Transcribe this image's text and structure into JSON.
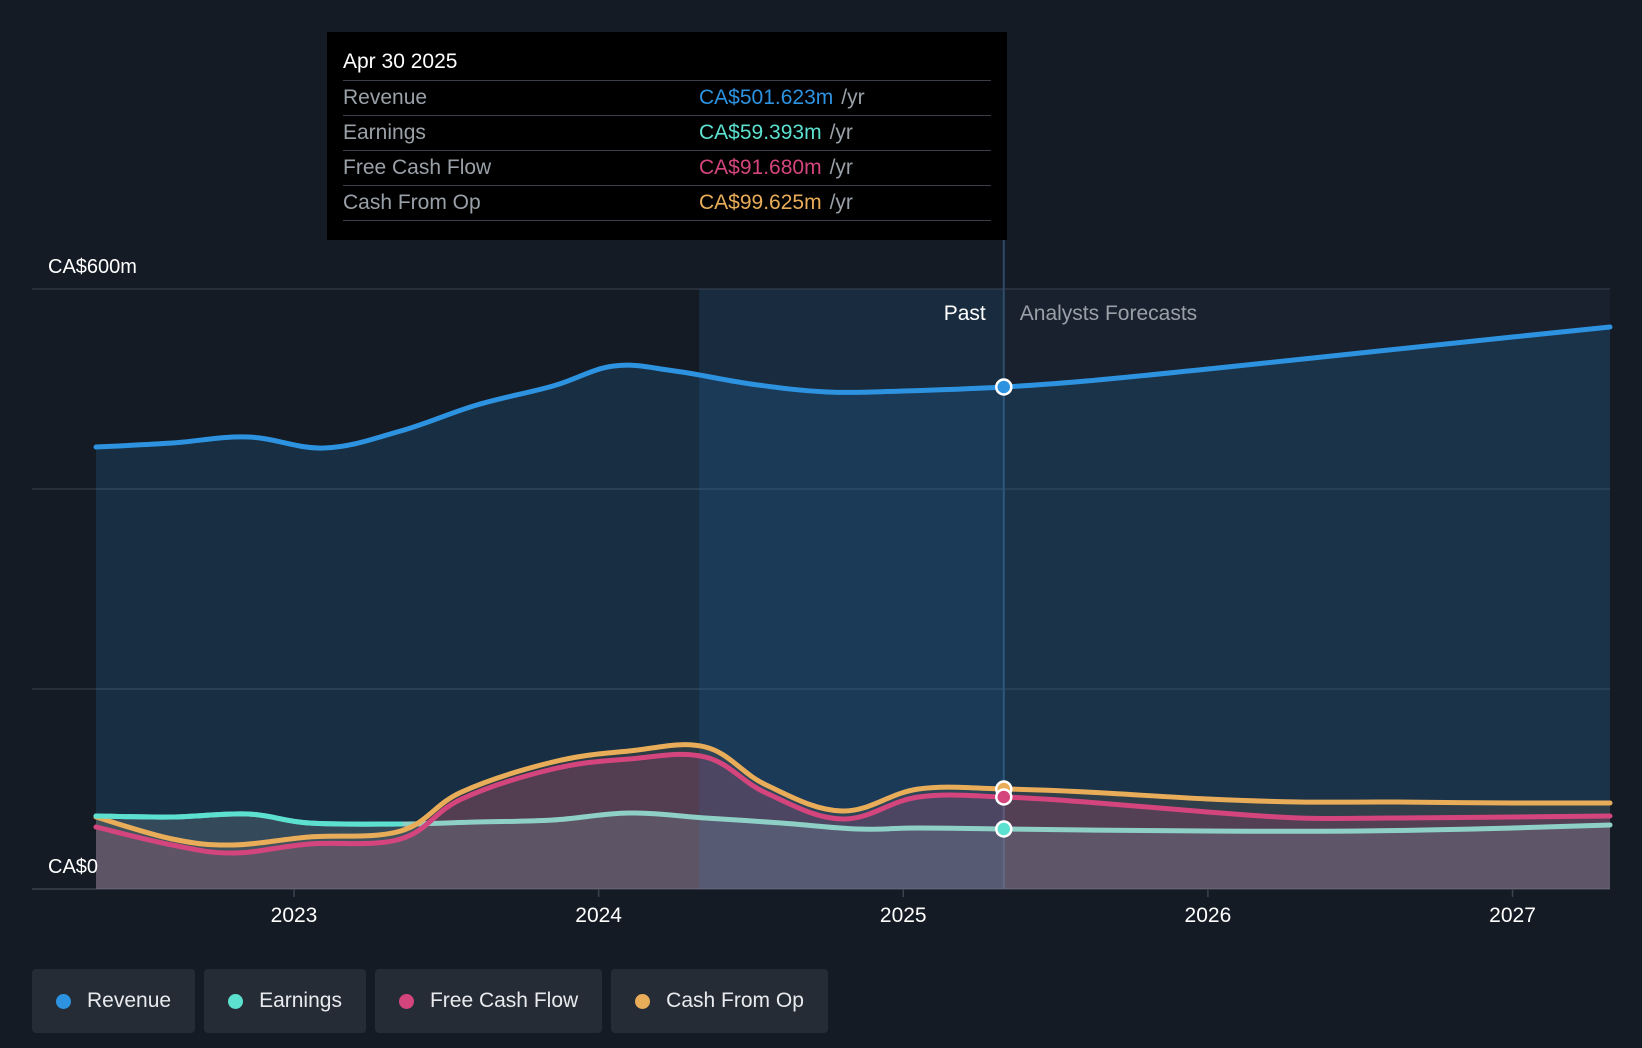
{
  "tooltip": {
    "date": "Apr 30 2025",
    "rows": [
      {
        "label": "Revenue",
        "value": "CA$501.623m",
        "unit": "/yr",
        "color": "#2d93e0"
      },
      {
        "label": "Earnings",
        "value": "CA$59.393m",
        "unit": "/yr",
        "color": "#5ce0d0"
      },
      {
        "label": "Free Cash Flow",
        "value": "CA$91.680m",
        "unit": "/yr",
        "color": "#d4457e"
      },
      {
        "label": "Cash From Op",
        "value": "CA$99.625m",
        "unit": "/yr",
        "color": "#e9ad5a"
      }
    ]
  },
  "legend": [
    {
      "label": "Revenue",
      "color": "#2d93e0"
    },
    {
      "label": "Earnings",
      "color": "#5ce0d0"
    },
    {
      "label": "Free Cash Flow",
      "color": "#d4457e"
    },
    {
      "label": "Cash From Op",
      "color": "#e9ad5a"
    }
  ],
  "chart_data": {
    "type": "line",
    "title": "",
    "xlabel": "",
    "ylabel": "",
    "y_tick_labels": [
      {
        "value": 600,
        "label": "CA$600m"
      },
      {
        "value": 0,
        "label": "CA$0"
      }
    ],
    "ylim": [
      0,
      600
    ],
    "xlim": [
      2022.35,
      2027.32
    ],
    "x_ticks": [
      2023,
      2024,
      2025,
      2026,
      2027
    ],
    "x_tick_labels": [
      "2023",
      "2024",
      "2025",
      "2026",
      "2027"
    ],
    "past_label": "Past",
    "forecast_label": "Analysts Forecasts",
    "divider_x": 2025.33,
    "highlight_start_x": 2024.33,
    "series": [
      {
        "name": "Revenue",
        "color": "#2d93e0",
        "x": [
          2022.35,
          2022.6,
          2022.85,
          2023.1,
          2023.35,
          2023.6,
          2023.85,
          2024.05,
          2024.25,
          2024.5,
          2024.75,
          2025.0,
          2025.33,
          2025.6,
          2026.0,
          2026.5,
          2027.0,
          2027.32
        ],
        "y": [
          442,
          446,
          452,
          441,
          458,
          484,
          503,
          523,
          518,
          505,
          497,
          498,
          502,
          508,
          520,
          536,
          552,
          562
        ]
      },
      {
        "name": "Earnings",
        "color": "#5ce0d0",
        "x": [
          2022.35,
          2022.6,
          2022.85,
          2023.05,
          2023.35,
          2023.6,
          2023.85,
          2024.1,
          2024.35,
          2024.6,
          2024.85,
          2025.05,
          2025.33,
          2025.6,
          2026.0,
          2026.5,
          2027.0,
          2027.32
        ],
        "y": [
          73,
          72,
          75,
          66,
          65,
          67,
          69,
          76,
          71,
          66,
          60,
          61,
          60,
          59,
          58,
          58,
          61,
          64
        ]
      },
      {
        "name": "Free Cash Flow",
        "color": "#d4457e",
        "x": [
          2022.35,
          2022.6,
          2022.8,
          2023.05,
          2023.35,
          2023.55,
          2023.85,
          2024.1,
          2024.35,
          2024.55,
          2024.8,
          2025.05,
          2025.33,
          2025.6,
          2026.0,
          2026.3,
          2026.6,
          2027.0,
          2027.32
        ],
        "y": [
          62,
          44,
          36,
          45,
          50,
          90,
          120,
          130,
          132,
          96,
          70,
          92,
          92,
          87,
          77,
          71,
          71,
          72,
          73
        ]
      },
      {
        "name": "Cash From Op",
        "color": "#e9ad5a",
        "x": [
          2022.35,
          2022.6,
          2022.8,
          2023.05,
          2023.35,
          2023.55,
          2023.85,
          2024.1,
          2024.35,
          2024.55,
          2024.8,
          2025.05,
          2025.33,
          2025.6,
          2026.0,
          2026.3,
          2026.6,
          2027.0,
          2027.32
        ],
        "y": [
          72,
          50,
          44,
          52,
          58,
          97,
          127,
          138,
          142,
          104,
          78,
          100,
          100,
          97,
          90,
          87,
          87,
          86,
          86
        ]
      }
    ]
  }
}
